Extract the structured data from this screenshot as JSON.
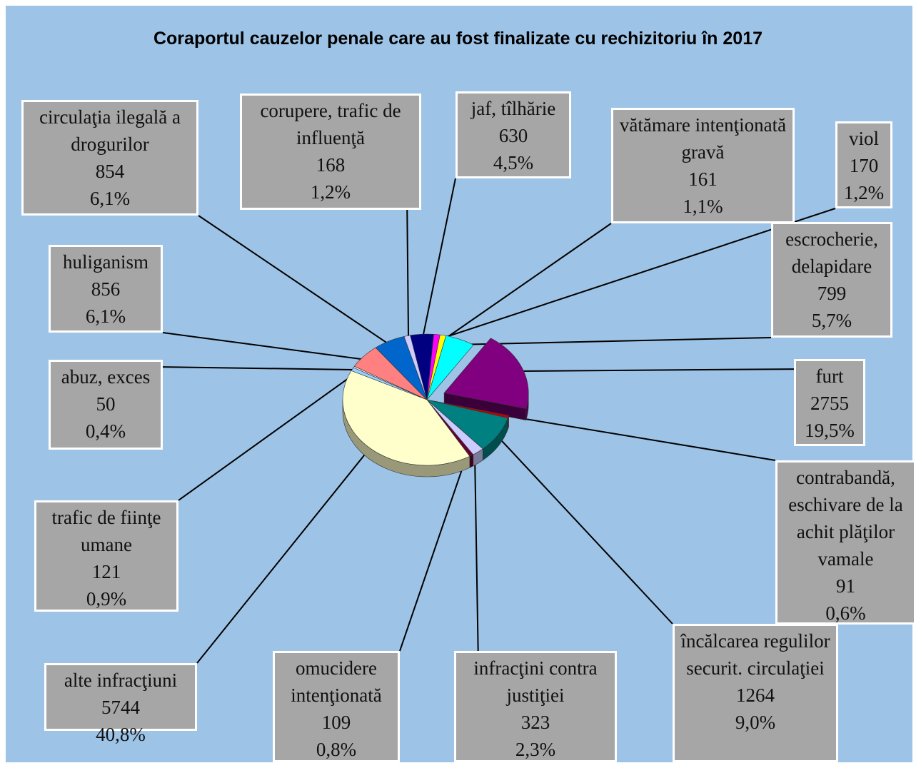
{
  "chart_data": {
    "type": "pie",
    "title": "Coraportul cauzelor penale care au fost finalizate cu rechizitoriu în 2017",
    "categories": [
      "jaf, tîlhărie",
      "viol",
      "vătămare intenţionată gravă",
      "escrocherie, delapidare",
      "furt",
      "contrabandă, eschivare de la achit plăţilor vamale",
      "încălcarea regulilor securit. circulaţiei",
      "infracţini contra justiţiei",
      "omucidere intenţionată",
      "alte infracţiuni",
      "trafic de fiinţe umane",
      "abuz, exces",
      "huliganism",
      "circulaţia ilegală a drogurilor",
      "corupere, trafic de influenţă"
    ],
    "values": [
      630,
      170,
      161,
      799,
      2755,
      91,
      1264,
      323,
      109,
      5744,
      121,
      50,
      856,
      854,
      168
    ],
    "shares": [
      4.5,
      1.2,
      1.1,
      5.7,
      19.5,
      0.6,
      9.0,
      2.3,
      0.8,
      40.8,
      0.9,
      0.4,
      6.1,
      6.1,
      1.2
    ],
    "share_labels": [
      "4,5%",
      "1,2%",
      "1,1%",
      "5,7%",
      "19,5%",
      "0,6%",
      "9,0%",
      "2,3%",
      "0,8%",
      "40,8%",
      "0,9%",
      "0,4%",
      "6,1%",
      "6,1%",
      "1,2%"
    ],
    "colors": [
      "#000080",
      "#ff00ff",
      "#ffff00",
      "#00ffff",
      "#800080",
      "#c00000",
      "#008080",
      "#ccccff",
      "#660033",
      "#ffffcc",
      "#99ccff",
      "#eeeeee",
      "#ff8080",
      "#0066cc",
      "#ccccff"
    ],
    "exploded": [
      4
    ]
  }
}
